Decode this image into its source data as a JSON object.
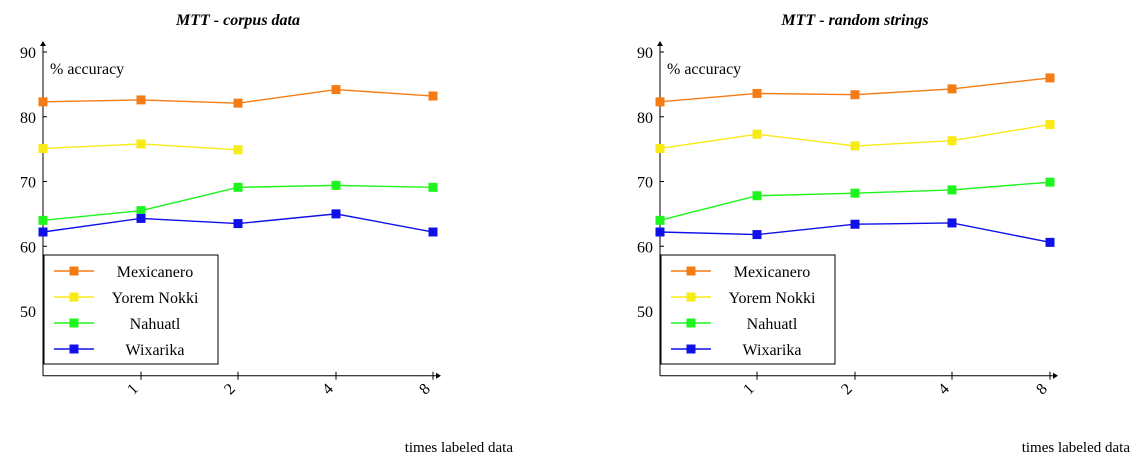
{
  "colors": {
    "Mexicanero": "#f57c14",
    "Yorem Nokki": "#f8ea15",
    "Nahuatl": "#1ef51e",
    "Wixarika": "#1010e8"
  },
  "chart_data": [
    {
      "type": "line",
      "title": "MTT - corpus data",
      "xlabel": "times labeled data",
      "ylabel": "% accuracy",
      "categories": [
        "",
        "1",
        "2",
        "4",
        "8"
      ],
      "ylim": [
        40,
        90
      ],
      "yticks": [
        50,
        60,
        70,
        80,
        90
      ],
      "legend_position": "bottom-left",
      "grid": false,
      "series": [
        {
          "name": "Mexicanero",
          "values": [
            82.3,
            82.6,
            82.1,
            84.2,
            83.2
          ]
        },
        {
          "name": "Yorem Nokki",
          "values": [
            75.1,
            75.8,
            74.9,
            null,
            null
          ]
        },
        {
          "name": "Nahuatl",
          "values": [
            64.0,
            65.5,
            69.1,
            69.4,
            69.1
          ]
        },
        {
          "name": "Wixarika",
          "values": [
            62.2,
            64.3,
            63.5,
            65.0,
            62.2
          ]
        }
      ]
    },
    {
      "type": "line",
      "title": "MTT - random strings",
      "xlabel": "times labeled data",
      "ylabel": "% accuracy",
      "categories": [
        "",
        "1",
        "2",
        "4",
        "8"
      ],
      "ylim": [
        40,
        90
      ],
      "yticks": [
        50,
        60,
        70,
        80,
        90
      ],
      "legend_position": "bottom-left",
      "grid": false,
      "series": [
        {
          "name": "Mexicanero",
          "values": [
            82.3,
            83.6,
            83.4,
            84.3,
            86.0
          ]
        },
        {
          "name": "Yorem Nokki",
          "values": [
            75.1,
            77.3,
            75.5,
            76.3,
            78.8
          ]
        },
        {
          "name": "Nahuatl",
          "values": [
            64.0,
            67.8,
            68.2,
            68.7,
            69.9
          ]
        },
        {
          "name": "Wixarika",
          "values": [
            62.2,
            61.8,
            63.4,
            63.6,
            60.6
          ]
        }
      ]
    }
  ]
}
